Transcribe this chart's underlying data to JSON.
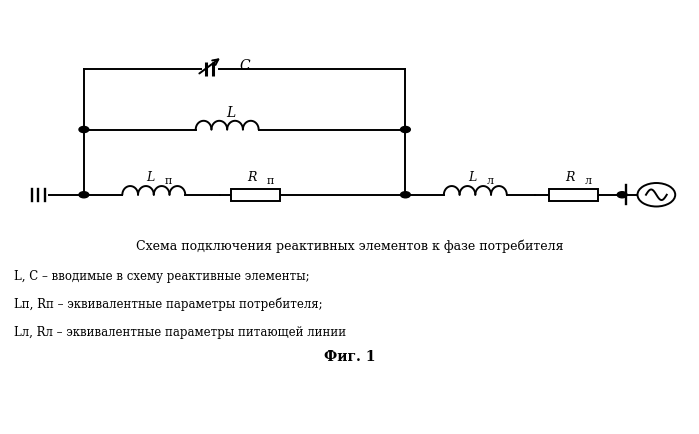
{
  "title": "Схема подключения реактивных элементов к фазе потребителя",
  "fig1_label": "Фиг. 1",
  "legend_lines": [
    "L, C – вводимые в схему реактивные элементы;",
    "Lп, Rп – эквивалентные параметры потребителя;",
    "Lл, Rл – эквивалентные параметры питающей линии"
  ],
  "bg_color": "#ffffff",
  "line_color": "#000000",
  "lw": 1.4,
  "figsize": [
    6.99,
    4.35
  ],
  "dpi": 100
}
